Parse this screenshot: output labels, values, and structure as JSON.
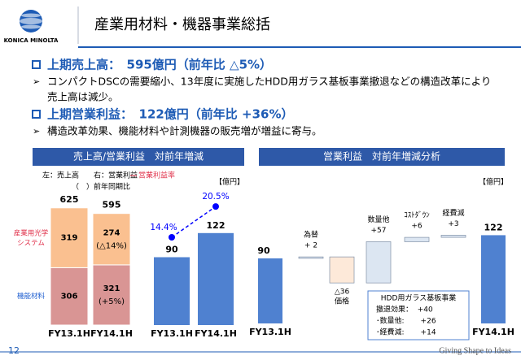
{
  "header": {
    "logo_text": "KONICA MINOLTA",
    "title": "産業用材料・機器事業総括"
  },
  "bullets": [
    {
      "heading": "上期売上高：　595億円（前年比 △5%）",
      "lines": [
        "コンパクトDSCの需要縮小、13年度に実施したHDD用ガラス基板事業撤退などの構造改革により",
        "売上高は減少。"
      ]
    },
    {
      "heading": "上期営業利益：　122億円（前年比 +36%）",
      "lines": [
        "構造改革効果、機能材料や計測機器の販売増が増益に寄与。"
      ]
    }
  ],
  "panels": [
    "売上高/営業利益　対前年増減",
    "営業利益　対前年増減分析"
  ],
  "chart_data": [
    {
      "type": "stacked_bar",
      "legend_note": "左：売上高　　右：営業利益",
      "note": "（　）前年同期比",
      "categories": [
        "FY13.1H",
        "FY14.1H"
      ],
      "ylim": [
        0,
        780
      ],
      "totals": [
        625,
        595
      ],
      "series": [
        {
          "name": "機能材料",
          "color": "#d99594",
          "label_color": "#1f5fd0",
          "values": [
            306,
            321
          ],
          "change_labels": [
            null,
            "(+5%)"
          ]
        },
        {
          "name": "産業用光学システム",
          "color": "#fac090",
          "label_color": "#e0304a",
          "values": [
            319,
            274
          ],
          "change_labels": [
            null,
            "(△14%)"
          ]
        }
      ]
    },
    {
      "type": "bar_line",
      "unit": "【億円】",
      "categories": [
        "FY13.1H",
        "FY14.1H"
      ],
      "values": [
        90,
        122
      ],
      "color": "#4f81d0",
      "ylim": [
        0,
        194
      ],
      "ratio_series": {
        "name": "営業利益率",
        "legend_color": "#e0304a",
        "color": "#0000ff",
        "axis": "y2",
        "values": [
          14.4,
          20.5
        ],
        "value_labels": [
          "14.4%",
          "20.5%"
        ]
      },
      "y2lim": [
        -3,
        26
      ]
    },
    {
      "type": "waterfall",
      "unit": "【億円】",
      "ylim": [
        0,
        200
      ],
      "categories": [
        "FY13.1H",
        "為替",
        "価格",
        "数量他",
        "ｺｽﾄﾀﾞｳﾝ",
        "経費減",
        "FY14.1H"
      ],
      "measure": [
        "absolute",
        "relative",
        "relative",
        "relative",
        "relative",
        "relative",
        "total"
      ],
      "values": [
        90,
        2,
        -36,
        57,
        6,
        3,
        122
      ],
      "value_labels": [
        "90",
        "+ 2",
        "△36",
        "+57",
        "+6",
        "+3",
        "122"
      ],
      "colors": {
        "total": "#4f81d0",
        "increase": "#dce6f2",
        "decrease": "#fde9d9"
      },
      "annotation": [
        "HDD用ガラス基板事業",
        "撤退効果：  +40",
        "･数量他:       +26",
        "･経費減:       +14"
      ]
    }
  ]
}
